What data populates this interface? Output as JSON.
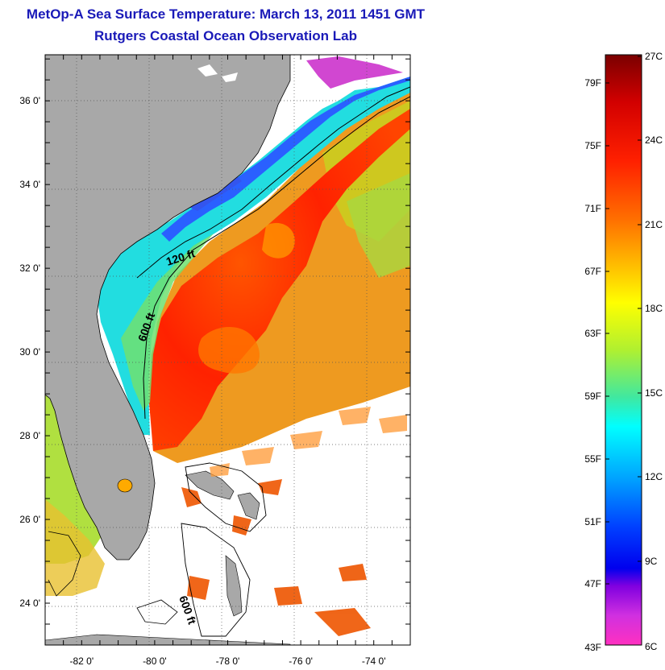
{
  "header": {
    "title": "MetOp-A Sea Surface Temperature:  March 13, 2011 1451 GMT",
    "subtitle": "Rutgers Coastal Ocean Observation Lab"
  },
  "map": {
    "lat_ticks": [
      {
        "value": 36,
        "label": "36 0'"
      },
      {
        "value": 34,
        "label": "34 0'"
      },
      {
        "value": 32,
        "label": "32 0'"
      },
      {
        "value": 30,
        "label": "30 0'"
      },
      {
        "value": 28,
        "label": "28 0'"
      },
      {
        "value": 26,
        "label": "26 0'"
      },
      {
        "value": 24,
        "label": "24 0'"
      }
    ],
    "lon_ticks": [
      {
        "value": -82,
        "label": "-82 0'"
      },
      {
        "value": -80,
        "label": "-80 0'"
      },
      {
        "value": -78,
        "label": "-78 0'"
      },
      {
        "value": -76,
        "label": "-76 0'"
      },
      {
        "value": -74,
        "label": "-74 0'"
      }
    ],
    "lat_range": [
      23,
      37.1
    ],
    "lon_range": [
      -83,
      -73
    ],
    "contours": [
      {
        "label": "120 ft"
      },
      {
        "label": "600 ft"
      },
      {
        "label": "600 ft"
      }
    ],
    "colors": {
      "land": "#a8a8a8",
      "gulf_stream": "#ff2a00",
      "warm": "#ff8c00",
      "shelf": "#22ddee",
      "cold": "#2244ff",
      "cloud": "#ffffff"
    }
  },
  "colorbar": {
    "fahrenheit": [
      "79F",
      "75F",
      "71F",
      "67F",
      "63F",
      "59F",
      "55F",
      "51F",
      "47F",
      "43F"
    ],
    "celsius": [
      "27C",
      "24C",
      "21C",
      "18C",
      "15C",
      "12C",
      "9C",
      "6C"
    ]
  }
}
